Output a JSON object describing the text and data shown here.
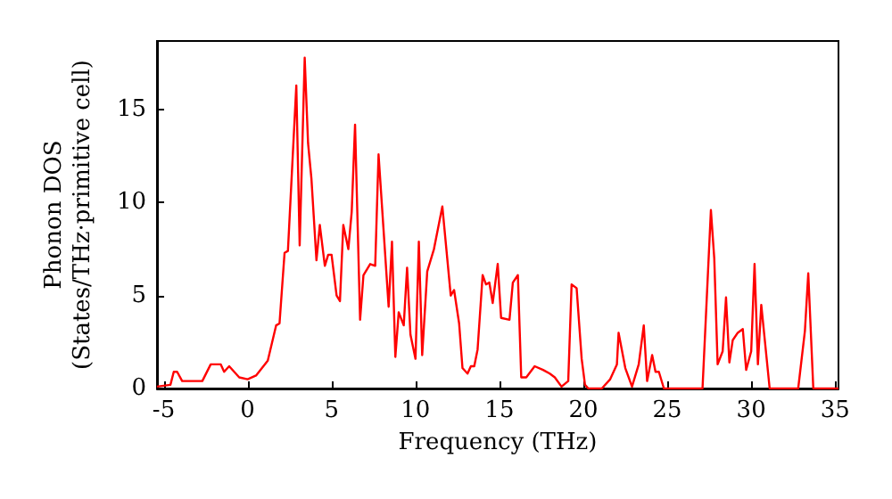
{
  "chart_data": {
    "type": "line",
    "xlabel": "Frequency (THz)",
    "ylabel": "Phonon DOS\n(States/THz·primitive cell)",
    "xlim": [
      -5.4,
      35.2
    ],
    "ylim": [
      0,
      18.7
    ],
    "xticks": [
      -5,
      0,
      5,
      10,
      15,
      20,
      25,
      30,
      35
    ],
    "yticks": [
      0,
      5,
      10,
      15
    ],
    "grid": false,
    "marker": "none",
    "line_style": "solid",
    "series": [
      {
        "color": "#ff0000",
        "x": [
          -5.4,
          -4.6,
          -4.4,
          -4.2,
          -3.9,
          -2.7,
          -2.2,
          -1.6,
          -1.4,
          -1.1,
          -0.5,
          0,
          0.5,
          1.2,
          1.7,
          1.9,
          2.2,
          2.4,
          2.9,
          3.1,
          3.4,
          3.6,
          3.8,
          4.1,
          4.3,
          4.6,
          4.8,
          5.0,
          5.3,
          5.5,
          5.7,
          6.0,
          6.2,
          6.4,
          6.7,
          6.9,
          7.3,
          7.6,
          7.8,
          8.4,
          8.6,
          8.8,
          9.0,
          9.3,
          9.5,
          9.7,
          10.0,
          10.2,
          10.4,
          10.7,
          11.1,
          11.6,
          12.1,
          12.3,
          12.6,
          12.8,
          13.1,
          13.3,
          13.5,
          13.7,
          14.0,
          14.2,
          14.4,
          14.6,
          14.9,
          15.1,
          15.6,
          15.8,
          16.1,
          16.3,
          16.6,
          17.1,
          17.6,
          18.0,
          18.3,
          18.7,
          19.1,
          19.3,
          19.6,
          19.9,
          20.1,
          20.3,
          21.1,
          21.6,
          22.0,
          22.1,
          22.5,
          22.9,
          23.3,
          23.6,
          23.8,
          24.1,
          24.3,
          24.5,
          24.8,
          27.1,
          27.6,
          27.8,
          28.0,
          28.3,
          28.5,
          28.7,
          28.9,
          29.2,
          29.5,
          29.7,
          30.0,
          30.2,
          30.4,
          30.6,
          31.1,
          32.8,
          33.2,
          33.4,
          33.7,
          35.2
        ],
        "values": [
          0.1,
          0.2,
          0.9,
          0.9,
          0.4,
          0.4,
          1.3,
          1.3,
          0.9,
          1.2,
          0.6,
          0.5,
          0.7,
          1.5,
          3.4,
          3.5,
          7.3,
          7.4,
          16.3,
          7.7,
          17.8,
          13.2,
          11.3,
          6.9,
          8.8,
          6.6,
          7.2,
          7.2,
          5.0,
          4.7,
          8.8,
          7.5,
          9.5,
          14.2,
          3.7,
          6.1,
          6.7,
          6.6,
          12.6,
          4.4,
          7.9,
          1.7,
          4.1,
          3.4,
          6.5,
          2.9,
          1.6,
          7.9,
          1.8,
          6.3,
          7.5,
          9.8,
          5.0,
          5.3,
          3.5,
          1.1,
          0.8,
          1.2,
          1.2,
          2.1,
          6.1,
          5.6,
          5.7,
          4.6,
          6.7,
          3.8,
          3.7,
          5.7,
          6.1,
          0.6,
          0.6,
          1.2,
          1.0,
          0.8,
          0.6,
          0.1,
          0.4,
          5.6,
          5.4,
          1.6,
          0.2,
          0,
          0,
          0.5,
          1.3,
          3.0,
          1.1,
          0.1,
          1.3,
          3.4,
          0.4,
          1.8,
          0.9,
          0.9,
          0,
          0,
          9.6,
          7.0,
          1.3,
          2.0,
          4.9,
          1.4,
          2.6,
          3.0,
          3.2,
          1.0,
          2.0,
          6.7,
          1.3,
          4.5,
          0,
          0,
          3.1,
          6.2,
          0,
          0
        ]
      }
    ]
  }
}
